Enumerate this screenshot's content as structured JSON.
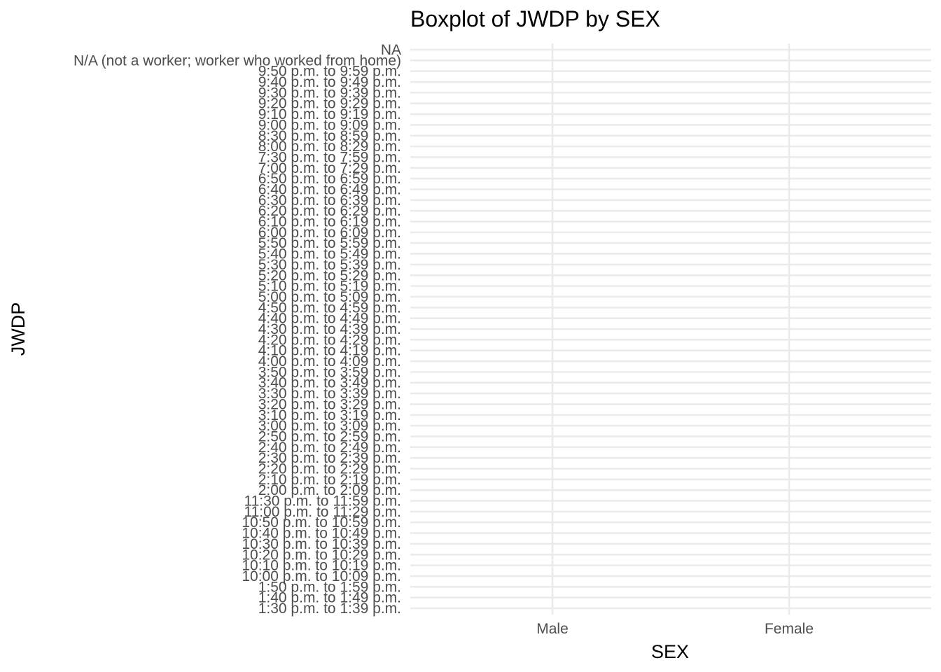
{
  "chart_data": {
    "type": "boxplot",
    "title": "Boxplot of JWDP by SEX",
    "xlabel": "SEX",
    "ylabel": "JWDP",
    "categories": [
      "Male",
      "Female"
    ],
    "y_categories": [
      "1:30 p.m. to 1:39 p.m.",
      "1:40 p.m. to 1:49 p.m.",
      "1:50 p.m. to 1:59 p.m.",
      "10:00 p.m. to 10:09 p.m.",
      "10:10 p.m. to 10:19 p.m.",
      "10:20 p.m. to 10:29 p.m.",
      "10:30 p.m. to 10:39 p.m.",
      "10:40 p.m. to 10:49 p.m.",
      "10:50 p.m. to 10:59 p.m.",
      "11:00 p.m. to 11:29 p.m.",
      "11:30 p.m. to 11:59 p.m.",
      "2:00 p.m. to 2:09 p.m.",
      "2:10 p.m. to 2:19 p.m.",
      "2:20 p.m. to 2:29 p.m.",
      "2:30 p.m. to 2:39 p.m.",
      "2:40 p.m. to 2:49 p.m.",
      "2:50 p.m. to 2:59 p.m.",
      "3:00 p.m. to 3:09 p.m.",
      "3:10 p.m. to 3:19 p.m.",
      "3:20 p.m. to 3:29 p.m.",
      "3:30 p.m. to 3:39 p.m.",
      "3:40 p.m. to 3:49 p.m.",
      "3:50 p.m. to 3:59 p.m.",
      "4:00 p.m. to 4:09 p.m.",
      "4:10 p.m. to 4:19 p.m.",
      "4:20 p.m. to 4:29 p.m.",
      "4:30 p.m. to 4:39 p.m.",
      "4:40 p.m. to 4:49 p.m.",
      "4:50 p.m. to 4:59 p.m.",
      "5:00 p.m. to 5:09 p.m.",
      "5:10 p.m. to 5:19 p.m.",
      "5:20 p.m. to 5:29 p.m.",
      "5:30 p.m. to 5:39 p.m.",
      "5:40 p.m. to 5:49 p.m.",
      "5:50 p.m. to 5:59 p.m.",
      "6:00 p.m. to 6:09 p.m.",
      "6:10 p.m. to 6:19 p.m.",
      "6:20 p.m. to 6:29 p.m.",
      "6:30 p.m. to 6:39 p.m.",
      "6:40 p.m. to 6:49 p.m.",
      "6:50 p.m. to 6:59 p.m.",
      "7:00 p.m. to 7:29 p.m.",
      "7:30 p.m. to 7:59 p.m.",
      "8:00 p.m. to 8:29 p.m.",
      "8:30 p.m. to 8:59 p.m.",
      "9:00 p.m. to 9:09 p.m.",
      "9:10 p.m. to 9:19 p.m.",
      "9:20 p.m. to 9:29 p.m.",
      "9:30 p.m. to 9:39 p.m.",
      "9:40 p.m. to 9:49 p.m.",
      "9:50 p.m. to 9:59 p.m.",
      "N/A (not a worker; worker who worked from home)",
      "NA"
    ],
    "series": [],
    "grid": true,
    "legend": "none",
    "colors": {
      "grid": "#ebebeb",
      "tick_text": "#4d4d4d",
      "title_text": "#000000",
      "background": "#ffffff"
    }
  }
}
